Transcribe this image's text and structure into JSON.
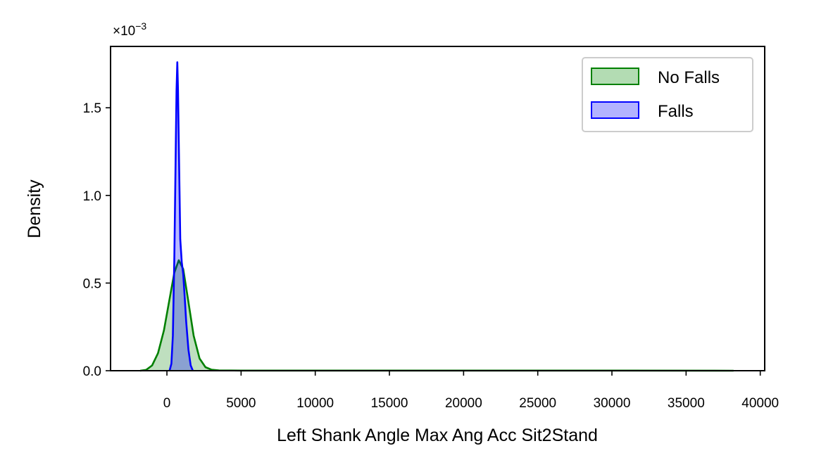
{
  "chart_data": {
    "type": "area",
    "xlabel": "Left Shank Angle Max Ang Acc Sit2Stand",
    "ylabel": "Density",
    "y_multiplier_label": "×10⁻³",
    "y_multiplier": 0.001,
    "xlim": [
      -3800,
      40300
    ],
    "ylim": [
      0,
      1.85
    ],
    "x_ticks": [
      0,
      5000,
      10000,
      15000,
      20000,
      25000,
      30000,
      35000,
      40000
    ],
    "x_tick_labels": [
      "0",
      "5000",
      "10000",
      "15000",
      "20000",
      "25000",
      "30000",
      "35000",
      "40000"
    ],
    "y_ticks": [
      0.0,
      0.5,
      1.0,
      1.5
    ],
    "y_tick_labels": [
      "0.0",
      "0.5",
      "1.0",
      "1.5"
    ],
    "grid": false,
    "legend_position": "top-right",
    "series": [
      {
        "name": "No Falls",
        "color": "#008000",
        "fill": "#b3dcb3",
        "x": [
          -1800,
          -1400,
          -1000,
          -600,
          -200,
          200,
          500,
          800,
          1100,
          1400,
          1800,
          2200,
          2600,
          3000,
          3500,
          5000,
          10000,
          20000,
          30000,
          38200
        ],
        "y": [
          0.0,
          0.005,
          0.03,
          0.1,
          0.23,
          0.42,
          0.56,
          0.63,
          0.58,
          0.42,
          0.2,
          0.07,
          0.02,
          0.006,
          0.002,
          0.001,
          0.001,
          0.001,
          0.001,
          0.0
        ]
      },
      {
        "name": "Falls",
        "color": "#0000ff",
        "fill": "#b3b3ff",
        "x": [
          180,
          300,
          400,
          500,
          600,
          650,
          700,
          750,
          800,
          900,
          1000,
          1100,
          1200,
          1300,
          1450,
          1600,
          1750
        ],
        "y": [
          0.0,
          0.04,
          0.2,
          0.65,
          1.3,
          1.6,
          1.76,
          1.6,
          1.3,
          0.75,
          0.62,
          0.55,
          0.42,
          0.28,
          0.12,
          0.03,
          0.0
        ]
      }
    ]
  }
}
